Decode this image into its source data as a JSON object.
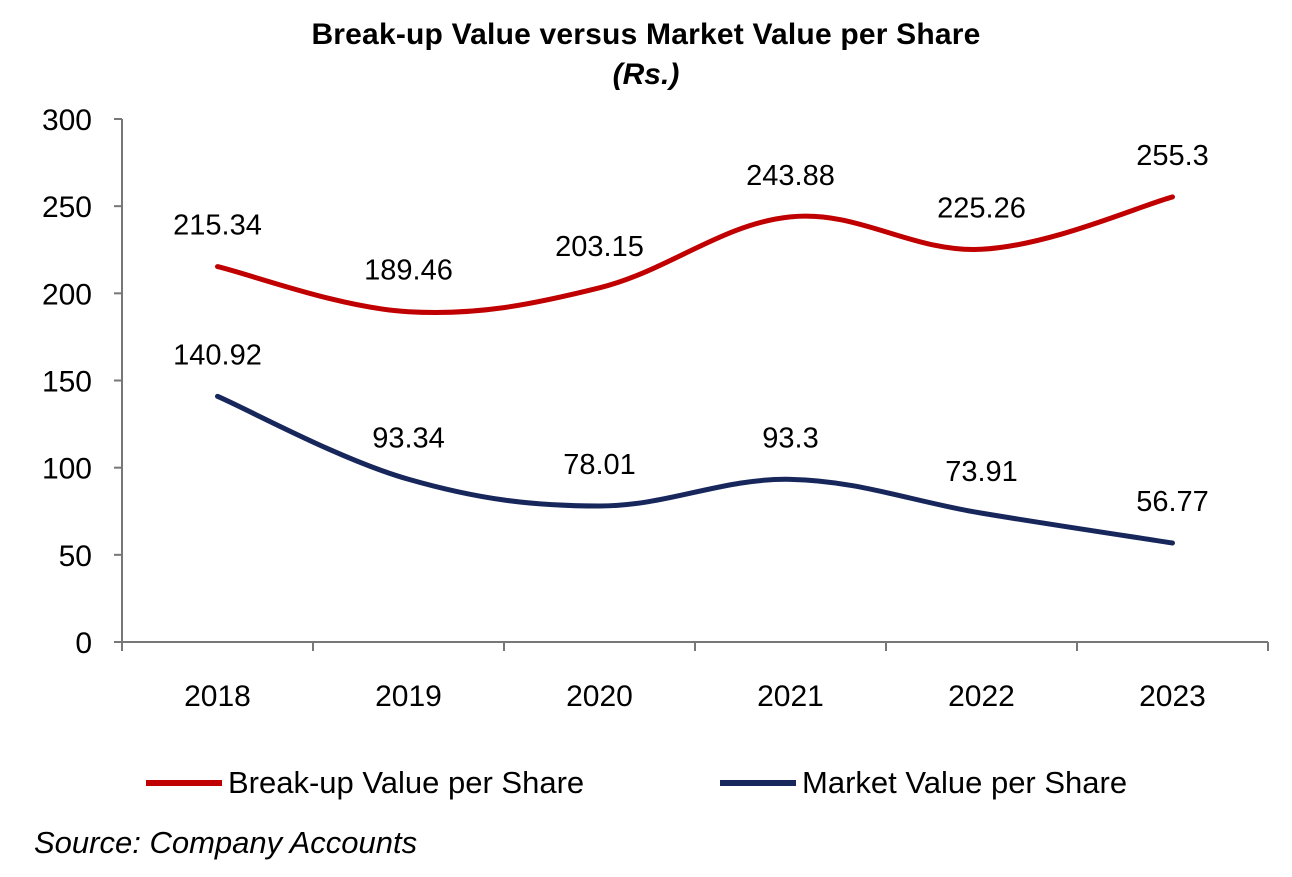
{
  "chart_data": {
    "type": "line",
    "title": "Break-up Value versus Market Value per Share",
    "subtitle": "(Rs.)",
    "categories": [
      "2018",
      "2019",
      "2020",
      "2021",
      "2022",
      "2023"
    ],
    "series": [
      {
        "name": "Break-up Value per Share",
        "color": "#C00000",
        "values": [
          215.34,
          189.46,
          203.15,
          243.88,
          225.26,
          255.3
        ],
        "labels": [
          "215.34",
          "189.46",
          "203.15",
          "243.88",
          "225.26",
          "255.3"
        ]
      },
      {
        "name": "Market Value per Share",
        "color": "#17275C",
        "values": [
          140.92,
          93.34,
          78.01,
          93.3,
          73.91,
          56.77
        ],
        "labels": [
          "140.92",
          "93.34",
          "78.01",
          "93.3",
          "73.91",
          "56.77"
        ]
      }
    ],
    "ylim": [
      0,
      300
    ],
    "yticks": [
      "0",
      "50",
      "100",
      "150",
      "200",
      "250",
      "300"
    ],
    "smooth": true,
    "grid": false,
    "legend_position": "bottom"
  },
  "source": "Source: Company Accounts"
}
